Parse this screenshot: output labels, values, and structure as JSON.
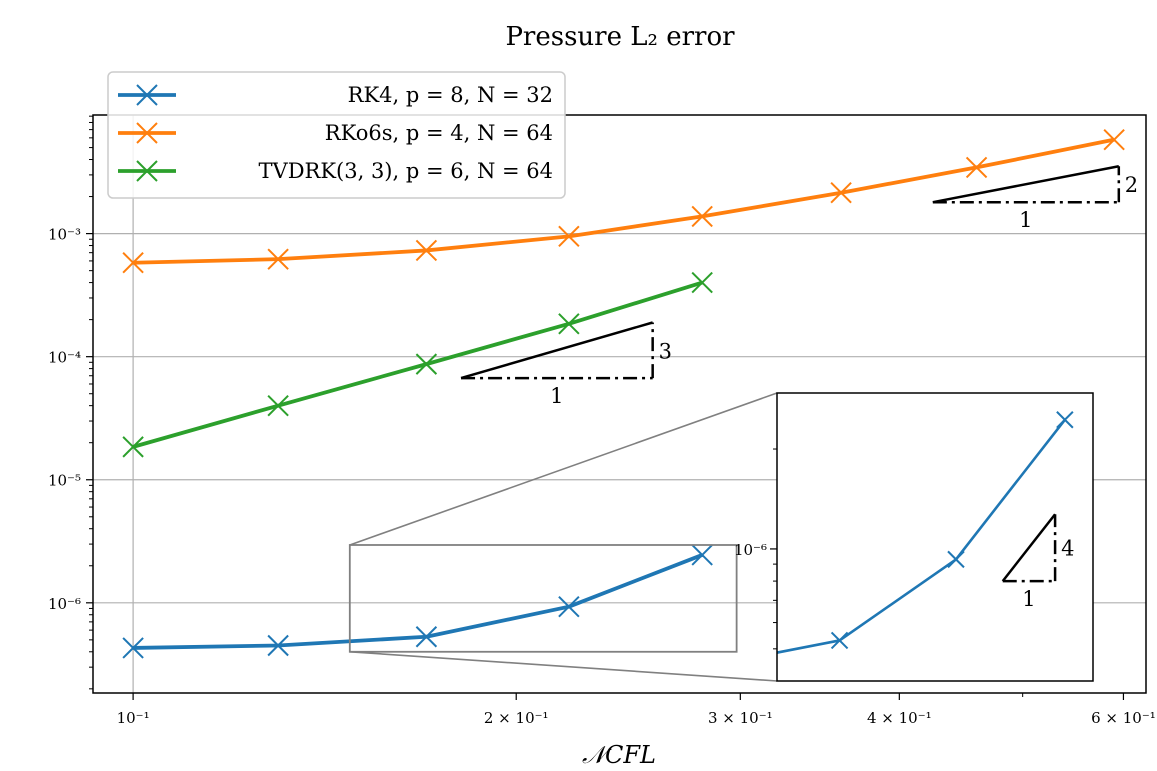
{
  "chart_data": {
    "type": "line",
    "title": "Pressure L₂ error",
    "xlabel": "𝒩CFL",
    "ylabel": "",
    "xscale": "log",
    "yscale": "log",
    "xlim": [
      0.093,
      0.625
    ],
    "ylim": [
      1.85e-07,
      0.0092
    ],
    "grid": true,
    "legend_position": "top-left",
    "x_ticks": [
      {
        "value": 0.1,
        "label": "10⁻¹"
      },
      {
        "value": 0.2,
        "label": "2 × 10⁻¹"
      },
      {
        "value": 0.3,
        "label": "3 × 10⁻¹"
      },
      {
        "value": 0.4,
        "label": "4 × 10⁻¹"
      },
      {
        "value": 0.6,
        "label": "6 × 10⁻¹"
      }
    ],
    "y_ticks": [
      {
        "value": 1e-06,
        "label": "10⁻⁶"
      },
      {
        "value": 1e-05,
        "label": "10⁻⁵"
      },
      {
        "value": 0.0001,
        "label": "10⁻⁴"
      },
      {
        "value": 0.001,
        "label": "10⁻³"
      }
    ],
    "series": [
      {
        "name": "RK4, p = 8, N = 32",
        "color": "#1f77b4",
        "x": [
          0.1,
          0.13,
          0.17,
          0.22,
          0.28
        ],
        "y": [
          4.3e-07,
          4.5e-07,
          5.3e-07,
          9.3e-07,
          2.45e-06
        ]
      },
      {
        "name": "RKo6s, p = 4, N = 64",
        "color": "#ff7f0e",
        "x": [
          0.1,
          0.13,
          0.17,
          0.22,
          0.28,
          0.36,
          0.46,
          0.59
        ],
        "y": [
          0.00058,
          0.00062,
          0.00073,
          0.00095,
          0.00138,
          0.00215,
          0.00345,
          0.0058
        ]
      },
      {
        "name": "TVDRK(3, 3), p = 6, N = 64",
        "color": "#2ca02c",
        "x": [
          0.1,
          0.13,
          0.17,
          0.22,
          0.28
        ],
        "y": [
          1.85e-05,
          4e-05,
          8.7e-05,
          0.000185,
          0.0004
        ]
      }
    ],
    "slope_triangles": [
      {
        "run_label": "1",
        "rise_label": "2",
        "x0": 0.425,
        "x1": 0.595,
        "y0": 0.0018,
        "slope": 2
      },
      {
        "run_label": "1",
        "rise_label": "3",
        "x0": 0.181,
        "x1": 0.256,
        "y0": 6.7e-05,
        "slope": 3
      }
    ],
    "inset": {
      "series_index": 0,
      "xlim": [
        0.148,
        0.298
      ],
      "ylim": [
        4e-07,
        2.95e-06
      ],
      "y_tick": {
        "value": 1e-06,
        "label": "10⁻⁶"
      },
      "slope_triangle": {
        "run_label": "1",
        "rise_label": "4",
        "x0": 0.244,
        "x1": 0.274,
        "y0": 8e-07,
        "slope": 4
      }
    }
  }
}
